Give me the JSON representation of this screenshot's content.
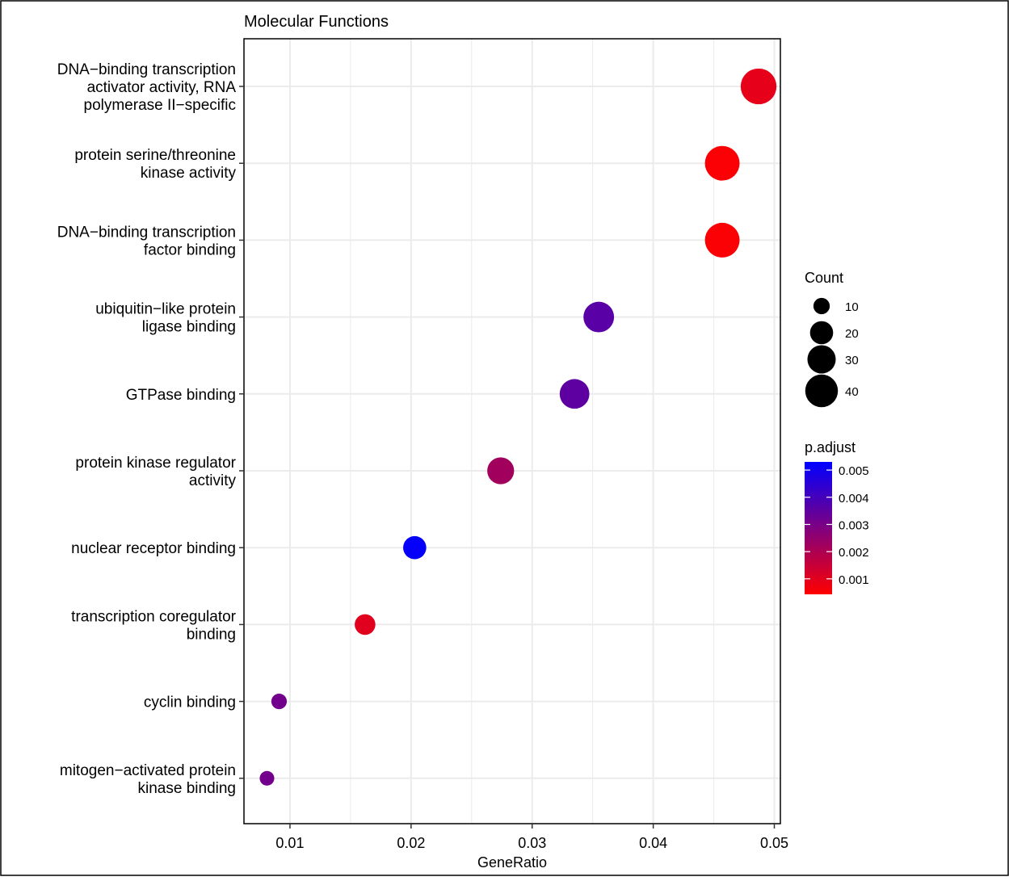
{
  "chart_data": {
    "type": "scatter",
    "title": "Molecular Functions",
    "xlabel": "GeneRatio",
    "ylabel": "",
    "xlim": [
      0.0062,
      0.0505
    ],
    "xticks": [
      0.01,
      0.02,
      0.03,
      0.04,
      0.05
    ],
    "xtick_labels": [
      "0.01",
      "0.02",
      "0.03",
      "0.04",
      "0.05"
    ],
    "grid": true,
    "categories": [
      "DNA−binding transcription activator activity, RNA polymerase II−specific",
      "protein serine/threonine kinase activity",
      "DNA−binding transcription factor binding",
      "ubiquitin−like protein ligase binding",
      "GTPase binding",
      "protein kinase regulator activity",
      "nuclear receptor binding",
      "transcription coregulator binding",
      "cyclin binding",
      "mitogen−activated protein kinase binding"
    ],
    "category_lines": [
      [
        "DNA−binding transcription",
        "activator activity, RNA",
        "polymerase II−specific"
      ],
      [
        "protein serine/threonine",
        "kinase activity"
      ],
      [
        "DNA−binding transcription",
        "factor binding"
      ],
      [
        "ubiquitin−like protein",
        "ligase binding"
      ],
      [
        "GTPase binding"
      ],
      [
        "protein kinase regulator",
        "activity"
      ],
      [
        "nuclear receptor binding"
      ],
      [
        "transcription coregulator",
        "binding"
      ],
      [
        "cyclin binding"
      ],
      [
        "mitogen−activated protein",
        "kinase binding"
      ]
    ],
    "points": [
      {
        "gene_ratio": 0.0487,
        "count": 48,
        "p_adjust": 0.0009
      },
      {
        "gene_ratio": 0.0457,
        "count": 45,
        "p_adjust": 0.0005
      },
      {
        "gene_ratio": 0.0457,
        "count": 45,
        "p_adjust": 0.0005
      },
      {
        "gene_ratio": 0.0355,
        "count": 35,
        "p_adjust": 0.0036
      },
      {
        "gene_ratio": 0.0335,
        "count": 33,
        "p_adjust": 0.0035
      },
      {
        "gene_ratio": 0.0274,
        "count": 27,
        "p_adjust": 0.0022
      },
      {
        "gene_ratio": 0.0203,
        "count": 20,
        "p_adjust": 0.0052
      },
      {
        "gene_ratio": 0.0162,
        "count": 16,
        "p_adjust": 0.001
      },
      {
        "gene_ratio": 0.0091,
        "count": 9,
        "p_adjust": 0.0031
      },
      {
        "gene_ratio": 0.0081,
        "count": 8,
        "p_adjust": 0.0031
      }
    ],
    "legend": {
      "placement": "right",
      "size_title": "Count",
      "size_values": [
        10,
        20,
        30,
        40
      ],
      "size_labels": [
        "10",
        "20",
        "30",
        "40"
      ],
      "color_title": "p.adjust",
      "color_range": [
        0.00043,
        0.0053
      ],
      "color_ticks": [
        0.005,
        0.004,
        0.003,
        0.002,
        0.001
      ],
      "color_tick_labels": [
        "0.005",
        "0.004",
        "0.003",
        "0.002",
        "0.001"
      ]
    },
    "colors": {
      "low_p": "#ff0000",
      "high_p": "#0000ff",
      "grid": "#ebebeb",
      "panel_border": "#333333"
    }
  }
}
